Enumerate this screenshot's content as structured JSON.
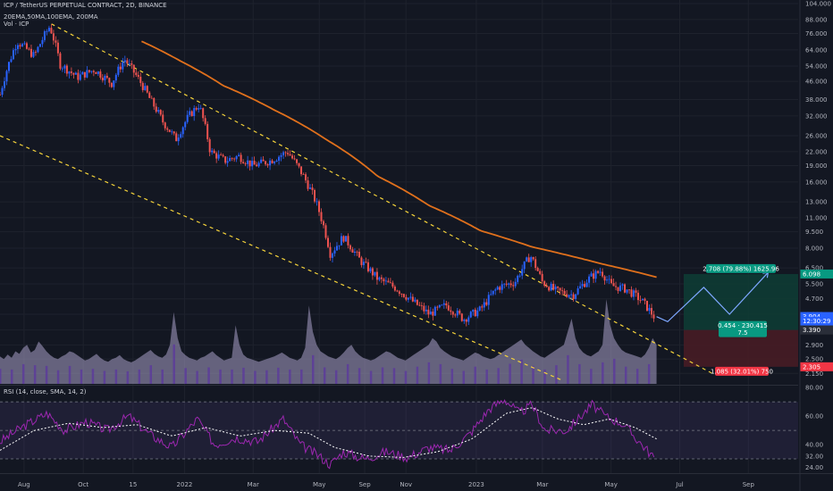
{
  "header": {
    "symbol_line": "ICP / TetherUS PERPETUAL CONTRACT, 2D, BINANCE",
    "indicators_line": "20EMA,50MA,100EMA, 200MA",
    "volume_line": "Vol · ICP"
  },
  "colors": {
    "background": "#131722",
    "grid": "#1e222d",
    "up_candle": "#2962ff",
    "down_candle": "#ef5350",
    "ma_line": "#e0701c",
    "channel": "#f5d33a",
    "volume": "#a9a1c9",
    "volume_dark": "#5b3a9c",
    "rsi_line": "#9c27b0",
    "rsi_sma": "#ffffff",
    "target_zone": "#0e3d35",
    "stop_zone": "#4a1c25",
    "target_label": "#089981",
    "stop_label": "#f23645",
    "price_label": "#2962ff",
    "projection": "#7ea7ff"
  },
  "chart_data": [
    {
      "type": "candlestick",
      "scale": "log",
      "x_axis_labels": [
        "Aug",
        "Oct",
        "15",
        "2022",
        "Mar",
        "May",
        "Sep",
        "Nov",
        "2023",
        "Mar",
        "May",
        "Jul",
        "Sep"
      ],
      "y_axis_labels": [
        "104.000",
        "88.000",
        "76.000",
        "64.000",
        "54.000",
        "46.000",
        "38.000",
        "32.000",
        "26.000",
        "22.000",
        "19.000",
        "16.000",
        "13.000",
        "11.000",
        "9.500",
        "8.000",
        "6.500",
        "5.500",
        "4.700",
        "4.000",
        "3.390",
        "2.900",
        "2.500",
        "2.150"
      ],
      "ylim": [
        2.0,
        104
      ],
      "series": [
        {
          "kind": "price",
          "close_anchors": [
            {
              "t": 0,
              "v": 40
            },
            {
              "t": 20,
              "v": 70
            },
            {
              "t": 40,
              "v": 60
            },
            {
              "t": 58,
              "v": 82
            },
            {
              "t": 70,
              "v": 55
            },
            {
              "t": 90,
              "v": 48
            },
            {
              "t": 110,
              "v": 52
            },
            {
              "t": 130,
              "v": 45
            },
            {
              "t": 145,
              "v": 58
            },
            {
              "t": 160,
              "v": 48
            },
            {
              "t": 175,
              "v": 38
            },
            {
              "t": 190,
              "v": 30
            },
            {
              "t": 205,
              "v": 25
            },
            {
              "t": 220,
              "v": 32
            },
            {
              "t": 232,
              "v": 36
            },
            {
              "t": 245,
              "v": 22
            },
            {
              "t": 262,
              "v": 20
            },
            {
              "t": 278,
              "v": 21
            },
            {
              "t": 295,
              "v": 19
            },
            {
              "t": 315,
              "v": 20
            },
            {
              "t": 335,
              "v": 22
            },
            {
              "t": 350,
              "v": 18
            },
            {
              "t": 368,
              "v": 13
            },
            {
              "t": 385,
              "v": 7.5
            },
            {
              "t": 400,
              "v": 9
            },
            {
              "t": 420,
              "v": 7
            },
            {
              "t": 440,
              "v": 5.8
            },
            {
              "t": 460,
              "v": 5.3
            },
            {
              "t": 480,
              "v": 4.6
            },
            {
              "t": 500,
              "v": 4.0
            },
            {
              "t": 520,
              "v": 4.4
            },
            {
              "t": 540,
              "v": 3.8
            },
            {
              "t": 560,
              "v": 4.2
            },
            {
              "t": 580,
              "v": 5.3
            },
            {
              "t": 600,
              "v": 5.6
            },
            {
              "t": 618,
              "v": 7.4
            },
            {
              "t": 632,
              "v": 5.6
            },
            {
              "t": 648,
              "v": 5.1
            },
            {
              "t": 668,
              "v": 4.9
            },
            {
              "t": 688,
              "v": 5.9
            },
            {
              "t": 700,
              "v": 6.3
            },
            {
              "t": 712,
              "v": 5.4
            },
            {
              "t": 730,
              "v": 5.2
            },
            {
              "t": 748,
              "v": 4.6
            },
            {
              "t": 762,
              "v": 3.9
            }
          ]
        },
        {
          "kind": "moving_average",
          "anchors": [
            {
              "t": 165,
              "v": 70
            },
            {
              "t": 210,
              "v": 57
            },
            {
              "t": 260,
              "v": 44
            },
            {
              "t": 320,
              "v": 34
            },
            {
              "t": 380,
              "v": 25
            },
            {
              "t": 440,
              "v": 17
            },
            {
              "t": 500,
              "v": 12.5
            },
            {
              "t": 560,
              "v": 9.6
            },
            {
              "t": 620,
              "v": 8.1
            },
            {
              "t": 700,
              "v": 6.8
            },
            {
              "t": 765,
              "v": 5.9
            }
          ]
        },
        {
          "kind": "channel_upper",
          "start": {
            "t": 60,
            "v": 84
          },
          "end": {
            "t": 830,
            "v": 2.15
          }
        },
        {
          "kind": "channel_lower",
          "start": {
            "t": 0,
            "v": 26
          },
          "end": {
            "t": 655,
            "v": 2.0
          }
        }
      ],
      "position": {
        "entry": 3.39,
        "target": 6.098,
        "stop": 2.305,
        "target_label": "2.708 (79.88%) 1625.96",
        "stop_label": "1.085 (32.01%) 750",
        "ratio_label": "0.454 · 230.415",
        "ratio_sub": "7.5"
      },
      "price_markers": [
        {
          "label": "6.098",
          "value": 6.098,
          "style": "target"
        },
        {
          "label": "3.904",
          "value": 3.904,
          "style": "price"
        },
        {
          "label": "12:30:29",
          "value": 3.72,
          "style": "price"
        },
        {
          "label": "3.390",
          "value": 3.39,
          "style": "entry"
        },
        {
          "label": "2.305",
          "value": 2.305,
          "style": "stop"
        }
      ],
      "projection": [
        {
          "t": 765,
          "v": 3.9
        },
        {
          "t": 778,
          "v": 3.7
        },
        {
          "t": 820,
          "v": 5.3
        },
        {
          "t": 850,
          "v": 4.0
        },
        {
          "t": 895,
          "v": 6.2
        }
      ]
    },
    {
      "type": "area",
      "name": "Vol · ICP",
      "values": [
        42,
        38,
        45,
        40,
        50,
        46,
        55,
        60,
        48,
        52,
        65,
        58,
        50,
        44,
        40,
        38,
        42,
        45,
        50,
        48,
        44,
        40,
        36,
        38,
        42,
        46,
        40,
        36,
        34,
        38,
        40,
        44,
        38,
        35,
        33,
        36,
        40,
        44,
        48,
        52,
        46,
        42,
        40,
        45,
        60,
        110,
        70,
        50,
        44,
        40,
        38,
        36,
        40,
        42,
        46,
        50,
        44,
        40,
        36,
        38,
        40,
        90,
        60,
        45,
        40,
        38,
        36,
        34,
        36,
        38,
        40,
        42,
        45,
        48,
        44,
        40,
        38,
        36,
        40,
        55,
        120,
        80,
        60,
        50,
        46,
        42,
        40,
        38,
        42,
        48,
        55,
        60,
        50,
        44,
        40,
        38,
        36,
        38,
        42,
        46,
        50,
        48,
        44,
        40,
        38,
        36,
        40,
        44,
        48,
        52,
        56,
        60,
        70,
        65,
        55,
        50,
        46,
        42,
        40,
        38,
        36,
        40,
        44,
        48,
        46,
        42,
        40,
        38,
        40,
        44,
        48,
        52,
        56,
        60,
        64,
        68,
        60,
        55,
        50,
        46,
        42,
        40,
        44,
        48,
        52,
        56,
        60,
        80,
        100,
        70,
        55,
        48,
        44,
        42,
        46,
        50,
        60,
        130,
        90,
        70,
        60,
        52,
        48,
        46,
        44,
        42,
        40,
        45,
        55,
        70,
        60
      ]
    },
    {
      "type": "line",
      "name": "RSI (14, close, SMA, 14, 2)",
      "y_axis_labels": [
        "80.00",
        "60.00",
        "40.00",
        "32.00",
        "24.00"
      ],
      "ylim": [
        20,
        82
      ],
      "series": [
        {
          "name": "RSI",
          "anchors": [
            {
              "t": 0,
              "v": 42
            },
            {
              "t": 25,
              "v": 52
            },
            {
              "t": 55,
              "v": 62
            },
            {
              "t": 75,
              "v": 50
            },
            {
              "t": 100,
              "v": 56
            },
            {
              "t": 125,
              "v": 50
            },
            {
              "t": 150,
              "v": 60
            },
            {
              "t": 175,
              "v": 47
            },
            {
              "t": 200,
              "v": 38
            },
            {
              "t": 230,
              "v": 58
            },
            {
              "t": 250,
              "v": 40
            },
            {
              "t": 275,
              "v": 45
            },
            {
              "t": 300,
              "v": 42
            },
            {
              "t": 330,
              "v": 58
            },
            {
              "t": 350,
              "v": 40
            },
            {
              "t": 372,
              "v": 32
            },
            {
              "t": 385,
              "v": 26
            },
            {
              "t": 400,
              "v": 35
            },
            {
              "t": 425,
              "v": 30
            },
            {
              "t": 450,
              "v": 35
            },
            {
              "t": 475,
              "v": 31
            },
            {
              "t": 500,
              "v": 38
            },
            {
              "t": 525,
              "v": 36
            },
            {
              "t": 548,
              "v": 48
            },
            {
              "t": 570,
              "v": 65
            },
            {
              "t": 588,
              "v": 72
            },
            {
              "t": 605,
              "v": 62
            },
            {
              "t": 620,
              "v": 68
            },
            {
              "t": 635,
              "v": 50
            },
            {
              "t": 660,
              "v": 50
            },
            {
              "t": 690,
              "v": 68
            },
            {
              "t": 705,
              "v": 60
            },
            {
              "t": 725,
              "v": 55
            },
            {
              "t": 745,
              "v": 42
            },
            {
              "t": 762,
              "v": 31
            }
          ]
        },
        {
          "name": "RSI-based MA",
          "anchors": [
            {
              "t": 0,
              "v": 36
            },
            {
              "t": 40,
              "v": 50
            },
            {
              "t": 80,
              "v": 55
            },
            {
              "t": 120,
              "v": 52
            },
            {
              "t": 160,
              "v": 54
            },
            {
              "t": 200,
              "v": 46
            },
            {
              "t": 240,
              "v": 52
            },
            {
              "t": 280,
              "v": 46
            },
            {
              "t": 320,
              "v": 50
            },
            {
              "t": 360,
              "v": 48
            },
            {
              "t": 390,
              "v": 38
            },
            {
              "t": 430,
              "v": 32
            },
            {
              "t": 470,
              "v": 31
            },
            {
              "t": 510,
              "v": 35
            },
            {
              "t": 550,
              "v": 44
            },
            {
              "t": 590,
              "v": 62
            },
            {
              "t": 620,
              "v": 66
            },
            {
              "t": 650,
              "v": 58
            },
            {
              "t": 680,
              "v": 54
            },
            {
              "t": 710,
              "v": 58
            },
            {
              "t": 740,
              "v": 52
            },
            {
              "t": 765,
              "v": 44
            }
          ]
        }
      ]
    }
  ]
}
